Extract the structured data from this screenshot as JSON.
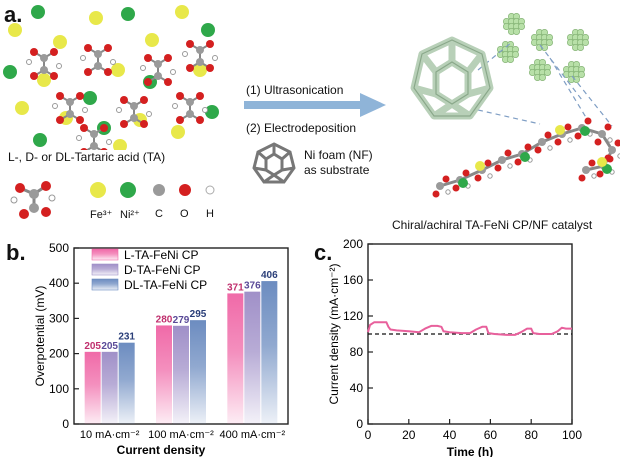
{
  "panel_a": {
    "label": "a.",
    "tartaric_caption": "L-, D- or DL-Tartaric acid (TA)",
    "legend": {
      "fe": "Fe³⁺",
      "ni": "Ni²⁺",
      "c": "C",
      "o": "O",
      "h": "H"
    },
    "step1": "(1) Ultrasonication",
    "step2": "(2) Electrodeposition",
    "nf_line1": "Ni foam (NF)",
    "nf_line2": "as substrate",
    "catalyst_caption": "Chiral/achiral TA-FeNi CP/NF catalyst",
    "colors": {
      "fe": "#e8e84a",
      "ni": "#2fa84a",
      "c": "#9a9a9a",
      "o": "#d42020",
      "h": "#ffffff",
      "arrow": "#8fb4d8",
      "cluster": "#b8e0a8",
      "cage": "#c8dcc8"
    }
  },
  "panel_b": {
    "label": "b."
  },
  "panel_c": {
    "label": "c."
  },
  "chart_data": [
    {
      "type": "bar",
      "panel": "b",
      "title": "",
      "xlabel": "Current density",
      "ylabel": "Overpotential (mV)",
      "ylim": [
        0,
        500
      ],
      "yticks": [
        "0",
        "100",
        "200",
        "300",
        "400",
        "500"
      ],
      "categories": [
        "10 mA·cm⁻²",
        "100 mA·cm⁻²",
        "400 mA·cm⁻²"
      ],
      "series": [
        {
          "name": "L-TA-FeNi CP",
          "color": "#f06aa8",
          "label_color": "#c0306e",
          "values": [
            205,
            280,
            371
          ]
        },
        {
          "name": "D-TA-FeNi CP",
          "color": "#a090c8",
          "label_color": "#5a4a98",
          "values": [
            205,
            279,
            376
          ]
        },
        {
          "name": "DL-TA-FeNi CP",
          "color": "#6c8cc0",
          "label_color": "#2a3e78",
          "values": [
            231,
            295,
            406
          ]
        }
      ],
      "legend_position": "top-left"
    },
    {
      "type": "line",
      "panel": "c",
      "title": "",
      "xlabel": "Time (h)",
      "ylabel": "Current density (mA·cm⁻²)",
      "xlim": [
        0,
        100
      ],
      "ylim": [
        0,
        200
      ],
      "xticks": [
        "0",
        "20",
        "40",
        "60",
        "80",
        "100"
      ],
      "yticks": [
        "0",
        "40",
        "80",
        "120",
        "160",
        "200"
      ],
      "reference_line": 100,
      "series": [
        {
          "name": "stability",
          "color": "#e8609c",
          "x": [
            0,
            1,
            3,
            6,
            9,
            10,
            11,
            14,
            20,
            25,
            28,
            31,
            34,
            36,
            37,
            40,
            46,
            50,
            53,
            56,
            58,
            59,
            62,
            68,
            72,
            75,
            78,
            80,
            81,
            84,
            90,
            93,
            95,
            97,
            100
          ],
          "y": [
            102,
            110,
            113,
            113,
            113,
            108,
            105,
            104,
            103,
            102,
            106,
            109,
            109,
            108,
            103,
            102,
            101,
            101,
            105,
            108,
            108,
            101,
            100,
            99,
            99,
            102,
            106,
            106,
            101,
            100,
            100,
            103,
            107,
            106,
            106
          ]
        }
      ]
    }
  ]
}
